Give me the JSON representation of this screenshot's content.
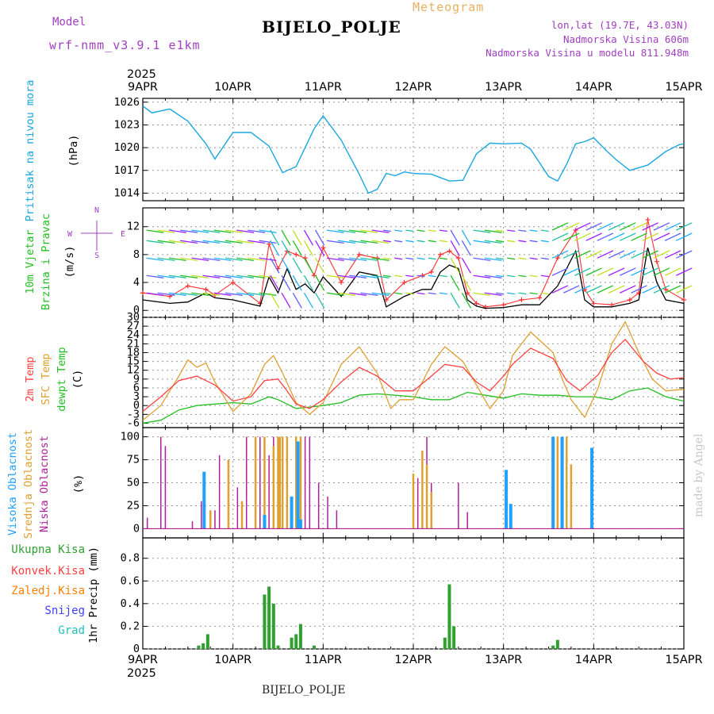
{
  "header": {
    "model_label": "Model",
    "model_name": "wrf-nmm_v3.9.1 e1km",
    "meteogram_title": "Meteogram",
    "station": "BIJELO_POLJE",
    "lonlat": "lon,lat (19.7E, 43.03N)",
    "altitude": "Nadmorska Visina 606m",
    "model_altitude": "Nadmorska Visina u modelu 811.948m"
  },
  "footer": {
    "station": "BIJELO_POLJE",
    "credit": "made by Angel"
  },
  "time_axis": {
    "year": "2025",
    "labels": [
      "9APR",
      "10APR",
      "11APR",
      "12APR",
      "13APR",
      "14APR",
      "15APR"
    ]
  },
  "colors": {
    "pressure": "#1aa6e0",
    "wind_speed": "#000000",
    "wind_gust": "#ff3030",
    "temp_2m": "#ff4040",
    "temp_sfc": "#e0a030",
    "temp_dew": "#20c020",
    "cloud_high": "#20a0ff",
    "cloud_mid": "#e0a030",
    "cloud_low": "#b0209a",
    "precip_total": "#30a030",
    "precip_conv": "#ff4040",
    "precip_frz": "#ff8000",
    "snow": "#4040ff",
    "hail": "#20c0c0"
  },
  "chart_data": [
    {
      "type": "line",
      "name": "pressure",
      "ylabel_1": "Pritisak na nivou mora",
      "ylabel_2": "(hPa)",
      "yticks": [
        1014,
        1017,
        1020,
        1023,
        1026
      ],
      "ylim": [
        1013,
        1026.5
      ],
      "x": [
        0,
        0.1,
        0.3,
        0.5,
        0.7,
        0.8,
        1.0,
        1.2,
        1.4,
        1.55,
        1.7,
        1.9,
        2.0,
        2.2,
        2.4,
        2.5,
        2.6,
        2.7,
        2.8,
        2.9,
        3.0,
        3.2,
        3.4,
        3.55,
        3.7,
        3.85,
        4.0,
        4.2,
        4.3,
        4.5,
        4.6,
        4.7,
        4.8,
        4.9,
        5.0,
        5.15,
        5.25,
        5.4,
        5.6,
        5.8,
        5.95,
        6.0
      ],
      "values": [
        1025.5,
        1024.6,
        1025.1,
        1023.5,
        1020.5,
        1018.5,
        1022.0,
        1022.0,
        1020.2,
        1016.7,
        1017.5,
        1022.5,
        1024.2,
        1021.0,
        1016.5,
        1014.0,
        1014.5,
        1016.6,
        1016.3,
        1016.8,
        1016.6,
        1016.5,
        1015.6,
        1015.7,
        1019.2,
        1020.6,
        1020.5,
        1020.6,
        1019.8,
        1016.2,
        1015.6,
        1017.8,
        1020.5,
        1020.8,
        1021.3,
        1019.5,
        1018.4,
        1017.0,
        1017.7,
        1019.5,
        1020.4,
        1020.5
      ]
    },
    {
      "type": "line",
      "name": "wind",
      "ylabel_1": "10m Vjetar",
      "ylabel_2": "Brzina i Pravac",
      "ylabel_3": "(m/s)",
      "compass": [
        "N",
        "W",
        "E",
        "S"
      ],
      "yticks": [
        0,
        4,
        8,
        12
      ],
      "ylim": [
        -1,
        14.7
      ],
      "series": [
        {
          "role": "speed",
          "x": [
            0,
            0.3,
            0.5,
            0.7,
            0.8,
            1.0,
            1.3,
            1.4,
            1.5,
            1.6,
            1.7,
            1.8,
            1.9,
            2.0,
            2.2,
            2.4,
            2.6,
            2.7,
            2.9,
            3.1,
            3.2,
            3.3,
            3.4,
            3.5,
            3.6,
            3.7,
            3.8,
            4.0,
            4.2,
            4.4,
            4.6,
            4.8,
            4.9,
            5.0,
            5.2,
            5.4,
            5.5,
            5.6,
            5.7,
            5.8,
            6.0
          ],
          "values": [
            1.5,
            1.0,
            1.2,
            2.5,
            1.8,
            1.5,
            0.6,
            4.8,
            2.5,
            6.0,
            3.0,
            3.8,
            2.5,
            4.8,
            2.0,
            5.5,
            5.0,
            0.5,
            2.0,
            3.0,
            3.0,
            5.5,
            6.5,
            6.0,
            1.5,
            0.6,
            0.3,
            0.4,
            0.8,
            0.8,
            3.5,
            8.5,
            1.5,
            0.5,
            0.5,
            1.0,
            1.5,
            9.0,
            4.0,
            1.5,
            1.0
          ]
        },
        {
          "role": "gust",
          "x": [
            0,
            0.3,
            0.5,
            0.7,
            0.8,
            1.0,
            1.3,
            1.4,
            1.5,
            1.6,
            1.7,
            1.8,
            1.9,
            2.0,
            2.2,
            2.4,
            2.6,
            2.7,
            2.9,
            3.1,
            3.2,
            3.3,
            3.4,
            3.5,
            3.6,
            3.7,
            3.8,
            4.0,
            4.2,
            4.4,
            4.6,
            4.8,
            4.9,
            5.0,
            5.2,
            5.4,
            5.5,
            5.6,
            5.7,
            5.8,
            6.0
          ],
          "values": [
            2.5,
            2.0,
            3.5,
            3.0,
            2.2,
            4.0,
            1.0,
            9.5,
            6.0,
            8.5,
            8.0,
            7.5,
            5.0,
            9.0,
            4.0,
            8.0,
            7.5,
            1.5,
            4.0,
            5.0,
            5.5,
            8.0,
            8.5,
            7.5,
            2.5,
            1.0,
            0.5,
            0.8,
            1.5,
            1.8,
            7.5,
            11.5,
            3.0,
            1.0,
            0.8,
            1.5,
            2.5,
            13.0,
            7.0,
            3.0,
            1.5
          ]
        }
      ]
    },
    {
      "type": "line",
      "name": "temperature",
      "ylabel_1": "2m Temp",
      "ylabel_2": "SFC Temp",
      "ylabel_3": "dewpt Temp",
      "ylabel_4": "(C)",
      "yticks": [
        -6,
        -3,
        0,
        3,
        6,
        9,
        12,
        15,
        18,
        21,
        24,
        27,
        30
      ],
      "ylim": [
        -7.5,
        30
      ],
      "series": [
        {
          "role": "2m",
          "x": [
            0,
            0.2,
            0.4,
            0.6,
            0.8,
            1.0,
            1.2,
            1.35,
            1.5,
            1.6,
            1.7,
            1.85,
            2.0,
            2.2,
            2.4,
            2.6,
            2.8,
            3.0,
            3.2,
            3.35,
            3.55,
            3.7,
            3.85,
            4.0,
            4.1,
            4.3,
            4.55,
            4.7,
            4.85,
            5.05,
            5.2,
            5.35,
            5.55,
            5.7,
            5.85,
            6.0
          ],
          "values": [
            -2.0,
            3.0,
            8.5,
            10.0,
            7.0,
            1.5,
            3.0,
            8.5,
            9.0,
            5.0,
            0.5,
            -1.0,
            2.0,
            8.0,
            13.0,
            10.0,
            5.0,
            5.0,
            10.0,
            14.0,
            13.0,
            8.0,
            5.0,
            10.0,
            14.0,
            19.5,
            16.0,
            8.5,
            5.0,
            10.5,
            18.0,
            22.5,
            15.0,
            11.0,
            9.0,
            9.5
          ]
        },
        {
          "role": "sfc",
          "x": [
            0,
            0.2,
            0.4,
            0.5,
            0.6,
            0.7,
            0.8,
            1.0,
            1.2,
            1.35,
            1.45,
            1.55,
            1.7,
            1.85,
            2.0,
            2.2,
            2.4,
            2.6,
            2.75,
            2.85,
            3.0,
            3.2,
            3.35,
            3.55,
            3.7,
            3.85,
            4.0,
            4.1,
            4.3,
            4.55,
            4.65,
            4.75,
            4.9,
            5.05,
            5.2,
            5.35,
            5.5,
            5.65,
            5.8,
            6.0
          ],
          "values": [
            -5.0,
            0.0,
            10.0,
            15.5,
            13.0,
            14.5,
            8.0,
            -2.0,
            4.0,
            14.0,
            17.0,
            11.0,
            1.0,
            -3.0,
            1.0,
            14.0,
            20.0,
            11.0,
            -1.0,
            2.0,
            2.0,
            14.0,
            20.0,
            15.0,
            7.0,
            -1.0,
            5.0,
            17.0,
            25.0,
            18.0,
            9.0,
            2.0,
            -4.0,
            6.0,
            21.0,
            28.5,
            18.0,
            9.0,
            5.0,
            5.5
          ]
        },
        {
          "role": "dew",
          "x": [
            0,
            0.2,
            0.4,
            0.6,
            0.8,
            1.0,
            1.2,
            1.4,
            1.5,
            1.7,
            1.85,
            2.0,
            2.2,
            2.4,
            2.6,
            2.8,
            3.0,
            3.2,
            3.4,
            3.6,
            3.8,
            4.0,
            4.2,
            4.4,
            4.6,
            4.8,
            5.0,
            5.2,
            5.4,
            5.6,
            5.8,
            6.0
          ],
          "values": [
            -6.0,
            -5.0,
            -1.5,
            0.0,
            0.5,
            1.0,
            0.5,
            3.0,
            2.0,
            -1.0,
            -0.5,
            0.0,
            1.0,
            3.5,
            4.0,
            3.5,
            3.0,
            2.0,
            2.0,
            4.5,
            3.5,
            2.5,
            4.0,
            3.5,
            3.5,
            3.0,
            3.0,
            2.0,
            5.0,
            6.0,
            3.0,
            1.5
          ]
        }
      ]
    },
    {
      "type": "bar",
      "name": "clouds",
      "ylabel_1": "Visoka Oblacnost",
      "ylabel_2": "Srednja Oblacnost",
      "ylabel_3": "Niska Oblacnost",
      "ylabel_4": "(%)",
      "yticks": [
        0,
        25,
        50,
        75,
        100
      ],
      "ylim": [
        -10,
        110
      ],
      "series": [
        {
          "role": "low",
          "x": [
            0.05,
            0.2,
            0.25,
            0.55,
            0.65,
            0.8,
            0.85,
            0.95,
            1.05,
            1.15,
            1.25,
            1.3,
            1.4,
            1.45,
            1.55,
            1.6,
            1.7,
            1.8,
            1.85,
            1.95,
            2.05,
            2.15,
            3.05,
            3.15,
            3.2,
            3.5,
            3.6
          ],
          "values": [
            12,
            100,
            90,
            8,
            30,
            20,
            80,
            60,
            45,
            100,
            100,
            100,
            80,
            100,
            100,
            100,
            80,
            100,
            100,
            50,
            35,
            20,
            55,
            100,
            50,
            50,
            18
          ]
        },
        {
          "role": "mid",
          "x": [
            0.75,
            0.95,
            1.1,
            1.25,
            1.35,
            1.45,
            1.5,
            1.52,
            1.55,
            1.6,
            1.65,
            1.7,
            1.75,
            3.0,
            3.1,
            3.15,
            3.2,
            4.55,
            4.6,
            4.7,
            4.75
          ],
          "values": [
            20,
            75,
            30,
            100,
            100,
            90,
            100,
            100,
            100,
            100,
            35,
            100,
            100,
            60,
            85,
            70,
            40,
            10,
            100,
            100,
            70
          ]
        },
        {
          "role": "high",
          "x": [
            0.68,
            1.35,
            1.65,
            1.72,
            1.75,
            4.03,
            4.08,
            4.55,
            4.65,
            4.98
          ],
          "values": [
            62,
            15,
            35,
            95,
            10,
            64,
            27,
            100,
            100,
            88
          ]
        }
      ]
    },
    {
      "type": "bar",
      "name": "precipitation",
      "legend": [
        "Ukupna Kisa",
        "Konvek.Kisa",
        "Zaledj.Kisa",
        "Snijeg",
        "Grad"
      ],
      "ylabel": "1hr Precip (mm)",
      "yticks": [
        0,
        0.2,
        0.4,
        0.6,
        0.8
      ],
      "ylim": [
        0,
        0.98
      ],
      "x": [
        0.62,
        0.67,
        0.72,
        1.35,
        1.4,
        1.45,
        1.5,
        1.65,
        1.7,
        1.75,
        1.9,
        3.35,
        3.4,
        3.45,
        4.55,
        4.6
      ],
      "values": [
        0.03,
        0.05,
        0.13,
        0.48,
        0.55,
        0.4,
        0.03,
        0.1,
        0.13,
        0.22,
        0.03,
        0.1,
        0.57,
        0.2,
        0.03,
        0.08
      ]
    }
  ]
}
